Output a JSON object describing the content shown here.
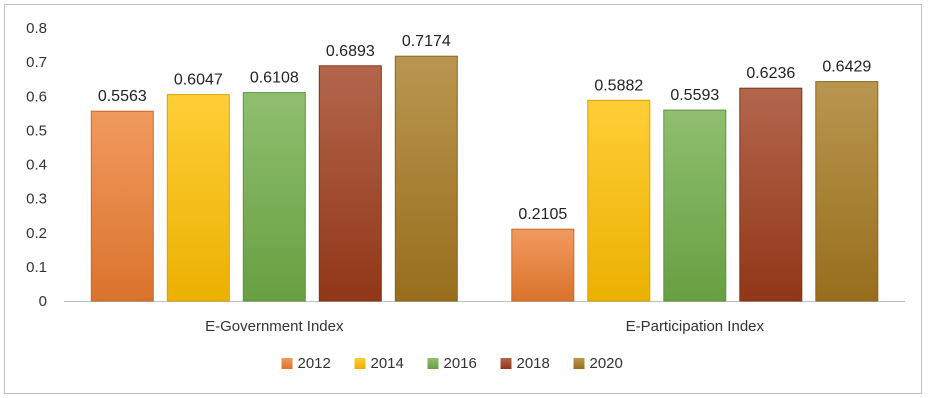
{
  "chart_data": {
    "type": "bar",
    "title": "",
    "xlabel": "",
    "ylabel": "",
    "categories": [
      "E-Government Index",
      "E-Participation Index"
    ],
    "series": [
      {
        "name": "2012",
        "values": [
          0.5563,
          0.2105
        ],
        "color": "#ED7D31"
      },
      {
        "name": "2014",
        "values": [
          0.6047,
          0.5882
        ],
        "color": "#FFC000"
      },
      {
        "name": "2016",
        "values": [
          0.6108,
          0.5593
        ],
        "color": "#70AD47"
      },
      {
        "name": "2018",
        "values": [
          0.6893,
          0.6236
        ],
        "color": "#9E3B1A"
      },
      {
        "name": "2020",
        "values": [
          0.7174,
          0.6429
        ],
        "color": "#A5781E"
      }
    ],
    "data_labels": [
      [
        "0.5563",
        "0.2105"
      ],
      [
        "0.6047",
        "0.5882"
      ],
      [
        "0.6108",
        "0.5593"
      ],
      [
        "0.6893",
        "0.6236"
      ],
      [
        "0.7174",
        "0.6429"
      ]
    ],
    "ylim": [
      0,
      0.8
    ],
    "yticks": [
      "0",
      "0.1",
      "0.2",
      "0.3",
      "0.4",
      "0.5",
      "0.6",
      "0.7",
      "0.8"
    ],
    "grid": false,
    "legend_position": "bottom"
  }
}
